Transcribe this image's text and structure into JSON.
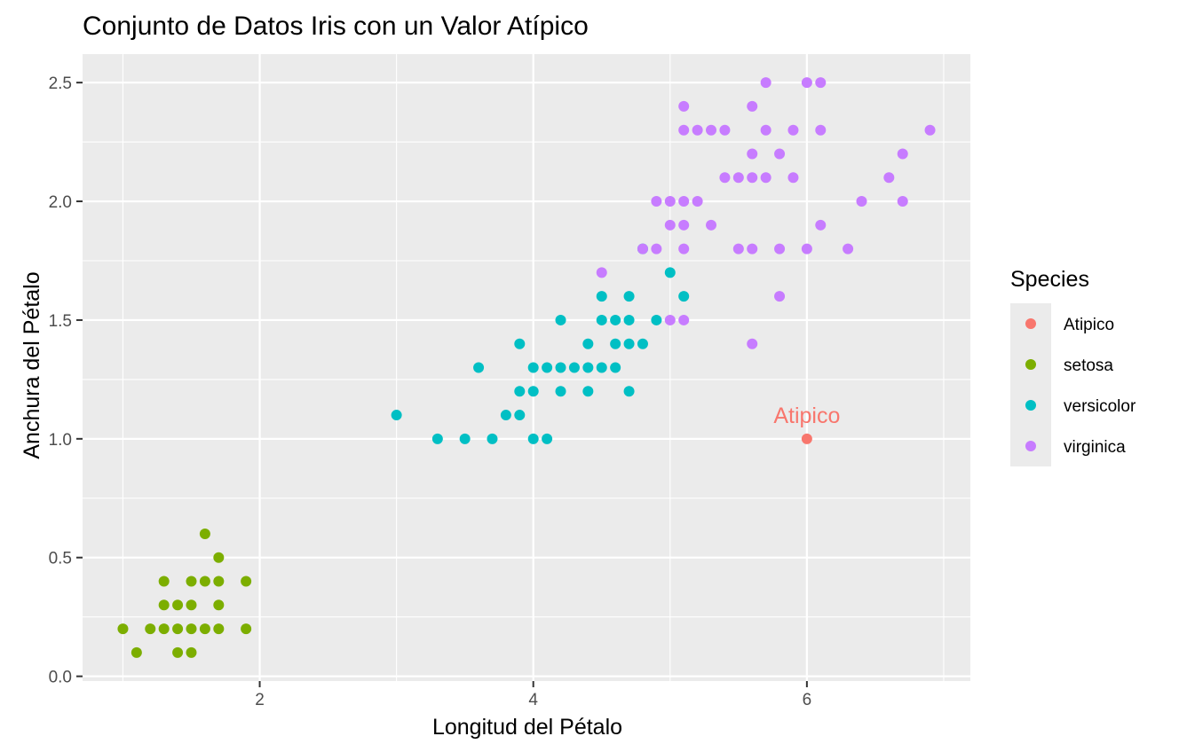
{
  "chart_data": {
    "type": "scatter",
    "title": "Conjunto de Datos Iris con un Valor Atípico",
    "xlabel": "Longitud del Pétalo",
    "ylabel": "Anchura del Pétalo",
    "xlim": [
      0.705,
      7.195
    ],
    "ylim": [
      -0.02,
      2.62
    ],
    "x_ticks": [
      2,
      4,
      6
    ],
    "y_ticks": [
      0.0,
      0.5,
      1.0,
      1.5,
      2.0,
      2.5
    ],
    "x_tick_labels": [
      "2",
      "4",
      "6"
    ],
    "y_tick_labels": [
      "0.0",
      "0.5",
      "1.0",
      "1.5",
      "2.0",
      "2.5"
    ],
    "grid": true,
    "legend_title": "Species",
    "legend_position": "right",
    "series": [
      {
        "name": "Atipico",
        "color": "#F8766D",
        "points": [
          [
            6.0,
            1.0
          ]
        ]
      },
      {
        "name": "setosa",
        "color": "#7CAE00",
        "points": [
          [
            1.0,
            0.2
          ],
          [
            1.1,
            0.1
          ],
          [
            1.2,
            0.2
          ],
          [
            1.3,
            0.2
          ],
          [
            1.3,
            0.3
          ],
          [
            1.3,
            0.4
          ],
          [
            1.4,
            0.1
          ],
          [
            1.4,
            0.2
          ],
          [
            1.4,
            0.3
          ],
          [
            1.5,
            0.1
          ],
          [
            1.5,
            0.2
          ],
          [
            1.5,
            0.3
          ],
          [
            1.5,
            0.4
          ],
          [
            1.6,
            0.2
          ],
          [
            1.6,
            0.4
          ],
          [
            1.6,
            0.6
          ],
          [
            1.7,
            0.2
          ],
          [
            1.7,
            0.3
          ],
          [
            1.7,
            0.4
          ],
          [
            1.7,
            0.5
          ],
          [
            1.9,
            0.2
          ],
          [
            1.9,
            0.4
          ]
        ]
      },
      {
        "name": "versicolor",
        "color": "#00BFC4",
        "points": [
          [
            3.0,
            1.1
          ],
          [
            3.3,
            1.0
          ],
          [
            3.5,
            1.0
          ],
          [
            3.6,
            1.3
          ],
          [
            3.7,
            1.0
          ],
          [
            3.8,
            1.1
          ],
          [
            3.9,
            1.1
          ],
          [
            3.9,
            1.2
          ],
          [
            3.9,
            1.4
          ],
          [
            4.0,
            1.0
          ],
          [
            4.0,
            1.2
          ],
          [
            4.0,
            1.3
          ],
          [
            4.1,
            1.0
          ],
          [
            4.1,
            1.3
          ],
          [
            4.2,
            1.2
          ],
          [
            4.2,
            1.3
          ],
          [
            4.2,
            1.5
          ],
          [
            4.3,
            1.3
          ],
          [
            4.4,
            1.2
          ],
          [
            4.4,
            1.3
          ],
          [
            4.4,
            1.4
          ],
          [
            4.5,
            1.3
          ],
          [
            4.5,
            1.5
          ],
          [
            4.5,
            1.6
          ],
          [
            4.6,
            1.3
          ],
          [
            4.6,
            1.4
          ],
          [
            4.6,
            1.5
          ],
          [
            4.7,
            1.2
          ],
          [
            4.7,
            1.4
          ],
          [
            4.7,
            1.5
          ],
          [
            4.7,
            1.6
          ],
          [
            4.8,
            1.4
          ],
          [
            4.8,
            1.8
          ],
          [
            4.9,
            1.5
          ],
          [
            5.0,
            1.7
          ],
          [
            5.1,
            1.6
          ]
        ]
      },
      {
        "name": "virginica",
        "color": "#C77CFF",
        "points": [
          [
            4.5,
            1.7
          ],
          [
            4.8,
            1.8
          ],
          [
            4.9,
            1.8
          ],
          [
            4.9,
            2.0
          ],
          [
            5.0,
            1.5
          ],
          [
            5.0,
            1.9
          ],
          [
            5.0,
            2.0
          ],
          [
            5.1,
            1.5
          ],
          [
            5.1,
            1.8
          ],
          [
            5.1,
            1.9
          ],
          [
            5.1,
            2.0
          ],
          [
            5.1,
            2.3
          ],
          [
            5.1,
            2.4
          ],
          [
            5.2,
            2.0
          ],
          [
            5.2,
            2.3
          ],
          [
            5.3,
            1.9
          ],
          [
            5.3,
            2.3
          ],
          [
            5.4,
            2.1
          ],
          [
            5.4,
            2.3
          ],
          [
            5.5,
            1.8
          ],
          [
            5.5,
            2.1
          ],
          [
            5.6,
            1.4
          ],
          [
            5.6,
            1.8
          ],
          [
            5.6,
            2.1
          ],
          [
            5.6,
            2.2
          ],
          [
            5.6,
            2.4
          ],
          [
            5.7,
            2.1
          ],
          [
            5.7,
            2.3
          ],
          [
            5.7,
            2.5
          ],
          [
            5.8,
            1.6
          ],
          [
            5.8,
            1.8
          ],
          [
            5.8,
            2.2
          ],
          [
            5.9,
            2.1
          ],
          [
            5.9,
            2.3
          ],
          [
            6.0,
            1.8
          ],
          [
            6.0,
            2.5
          ],
          [
            6.1,
            1.9
          ],
          [
            6.1,
            2.3
          ],
          [
            6.1,
            2.5
          ],
          [
            6.3,
            1.8
          ],
          [
            6.4,
            2.0
          ],
          [
            6.6,
            2.1
          ],
          [
            6.7,
            2.0
          ],
          [
            6.7,
            2.2
          ],
          [
            6.9,
            2.3
          ]
        ]
      }
    ],
    "annotations": [
      {
        "text": "Atipico",
        "x": 6.0,
        "y": 1.1,
        "color": "#F8766D"
      }
    ]
  }
}
